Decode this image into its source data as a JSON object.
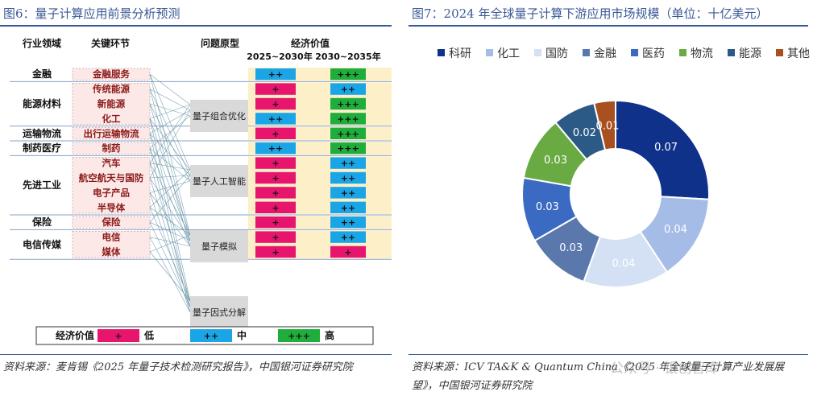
{
  "left": {
    "title": "图6：量子计算应用前景分析预测",
    "headers": {
      "industry": "行业领域",
      "segment": "关键环节",
      "problem": "问题原型",
      "value": "经济价值",
      "y2025": "2025~2030年",
      "y2035": "2030~2035年"
    },
    "groups": [
      {
        "industry": "金融",
        "segments": [
          "金融服务"
        ]
      },
      {
        "industry": "能源材料",
        "segments": [
          "传统能源",
          "新能源",
          "化工"
        ]
      },
      {
        "industry": "运输物流",
        "segments": [
          "出行运输物流"
        ]
      },
      {
        "industry": "制药医疗",
        "segments": [
          "制药"
        ]
      },
      {
        "industry": "先进工业",
        "segments": [
          "汽车",
          "航空航天与国防",
          "电子产品",
          "半导体"
        ]
      },
      {
        "industry": "保险",
        "segments": [
          "保险"
        ]
      },
      {
        "industry": "电信传媒",
        "segments": [
          "电信",
          "媒体"
        ]
      }
    ],
    "problems": [
      "量子组合优化",
      "量子人工智能",
      "量子模拟",
      "量子因式分解"
    ],
    "rows": [
      {
        "segment": "金融服务",
        "v2025": "++",
        "v2035": "+++"
      },
      {
        "segment": "传统能源",
        "v2025": "+",
        "v2035": "++"
      },
      {
        "segment": "新能源",
        "v2025": "+",
        "v2035": "+++"
      },
      {
        "segment": "化工",
        "v2025": "++",
        "v2035": "+++"
      },
      {
        "segment": "出行运输物流",
        "v2025": "+",
        "v2035": "+++"
      },
      {
        "segment": "制药",
        "v2025": "++",
        "v2035": "+++"
      },
      {
        "segment": "汽车",
        "v2025": "+",
        "v2035": "++"
      },
      {
        "segment": "航空航天与国防",
        "v2025": "+",
        "v2035": "++"
      },
      {
        "segment": "电子产品",
        "v2025": "+",
        "v2035": "++"
      },
      {
        "segment": "半导体",
        "v2025": "+",
        "v2035": "++"
      },
      {
        "segment": "保险",
        "v2025": "+",
        "v2035": "++"
      },
      {
        "segment": "电信",
        "v2025": "+",
        "v2035": "++"
      },
      {
        "segment": "媒体",
        "v2025": "+",
        "v2035": "+"
      }
    ],
    "legend": {
      "label": "经济价值",
      "items": [
        {
          "symbol": "+",
          "text": "低"
        },
        {
          "symbol": "++",
          "text": "中"
        },
        {
          "symbol": "+++",
          "text": "高"
        }
      ]
    },
    "colors": {
      "low": "#e8156e",
      "mid": "#1aa6e6",
      "high": "#1fae3c",
      "band": "#fdf0c8",
      "segment_bg": "#fce9e7",
      "segment_text": "#8b1a1a",
      "problem_bg": "#d9d9d9",
      "line": "#5a8c9e"
    },
    "source_line1": "资料来源：麦肯锡《2025 年量子技术检测研究报告》，中国银河证券研究院"
  },
  "right": {
    "title": "图7：2024 年全球量子计算下游应用市场规模（单位：十亿美元）",
    "source_line1": "资料来源：ICV TA&K & Quantum China《2025 年全球量子计算产业发展展",
    "source_line2": "望》，中国银河证券研究院",
    "watermark": "公众号 · 银创智库"
  },
  "chart_data": {
    "type": "pie",
    "variant": "donut",
    "title": "2024 年全球量子计算下游应用市场规模（单位：十亿美元）",
    "categories": [
      "科研",
      "化工",
      "国防",
      "金融",
      "医药",
      "物流",
      "能源",
      "其他"
    ],
    "values": [
      0.07,
      0.04,
      0.04,
      0.03,
      0.03,
      0.03,
      0.02,
      0.01
    ],
    "colors": [
      "#0f318a",
      "#a4bce6",
      "#d4e0f4",
      "#5b78ad",
      "#3a6ac2",
      "#6aaa42",
      "#2c5a86",
      "#a8501f"
    ],
    "legend_position": "top"
  }
}
